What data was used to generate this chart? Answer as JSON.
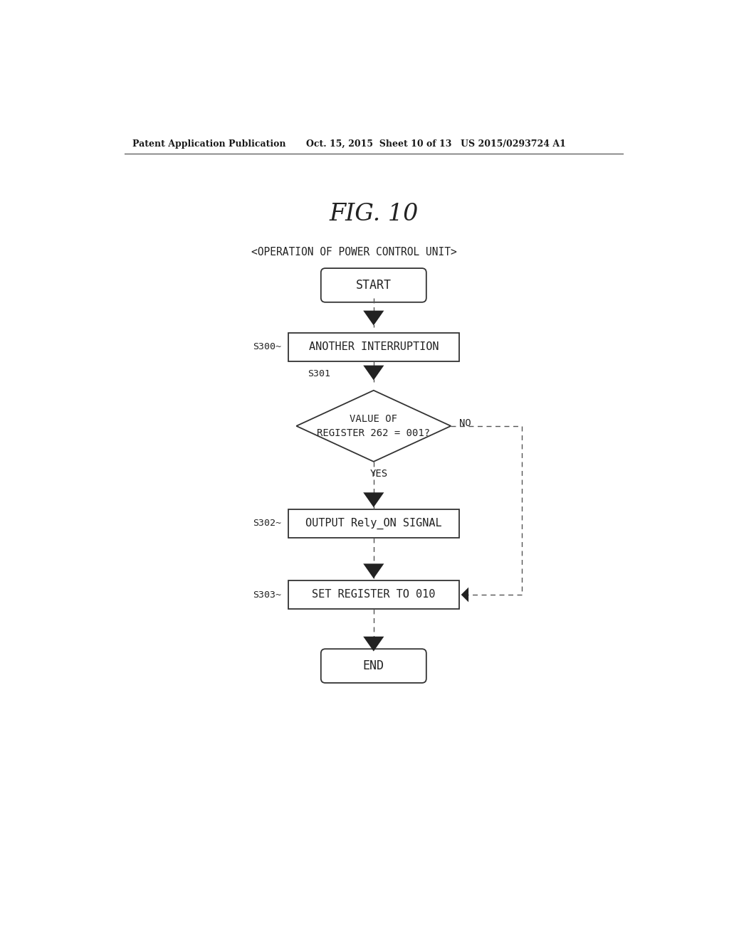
{
  "fig_label": "FIG. 10",
  "subtitle": "<OPERATION OF POWER CONTROL UNIT>",
  "header_left": "Patent Application Publication",
  "header_mid": "Oct. 15, 2015  Sheet 10 of 13",
  "header_right": "US 2015/0293724 A1",
  "bg_color": "#ffffff",
  "box_color": "#333333",
  "line_color": "#555555",
  "font_color": "#222222",
  "font_family": "monospace",
  "start_label": "START",
  "end_label": "END",
  "s300_label": "ANOTHER INTERRUPTION",
  "s300_step": "S300~",
  "s301_label": "VALUE OF\nREGISTER 262 = 001?",
  "s301_step": "S301",
  "s302_label": "OUTPUT Rely_ON SIGNAL",
  "s302_step": "S302~",
  "s303_label": "SET REGISTER TO 010",
  "s303_step": "S303~",
  "yes_label": "YES",
  "no_label": "NO"
}
